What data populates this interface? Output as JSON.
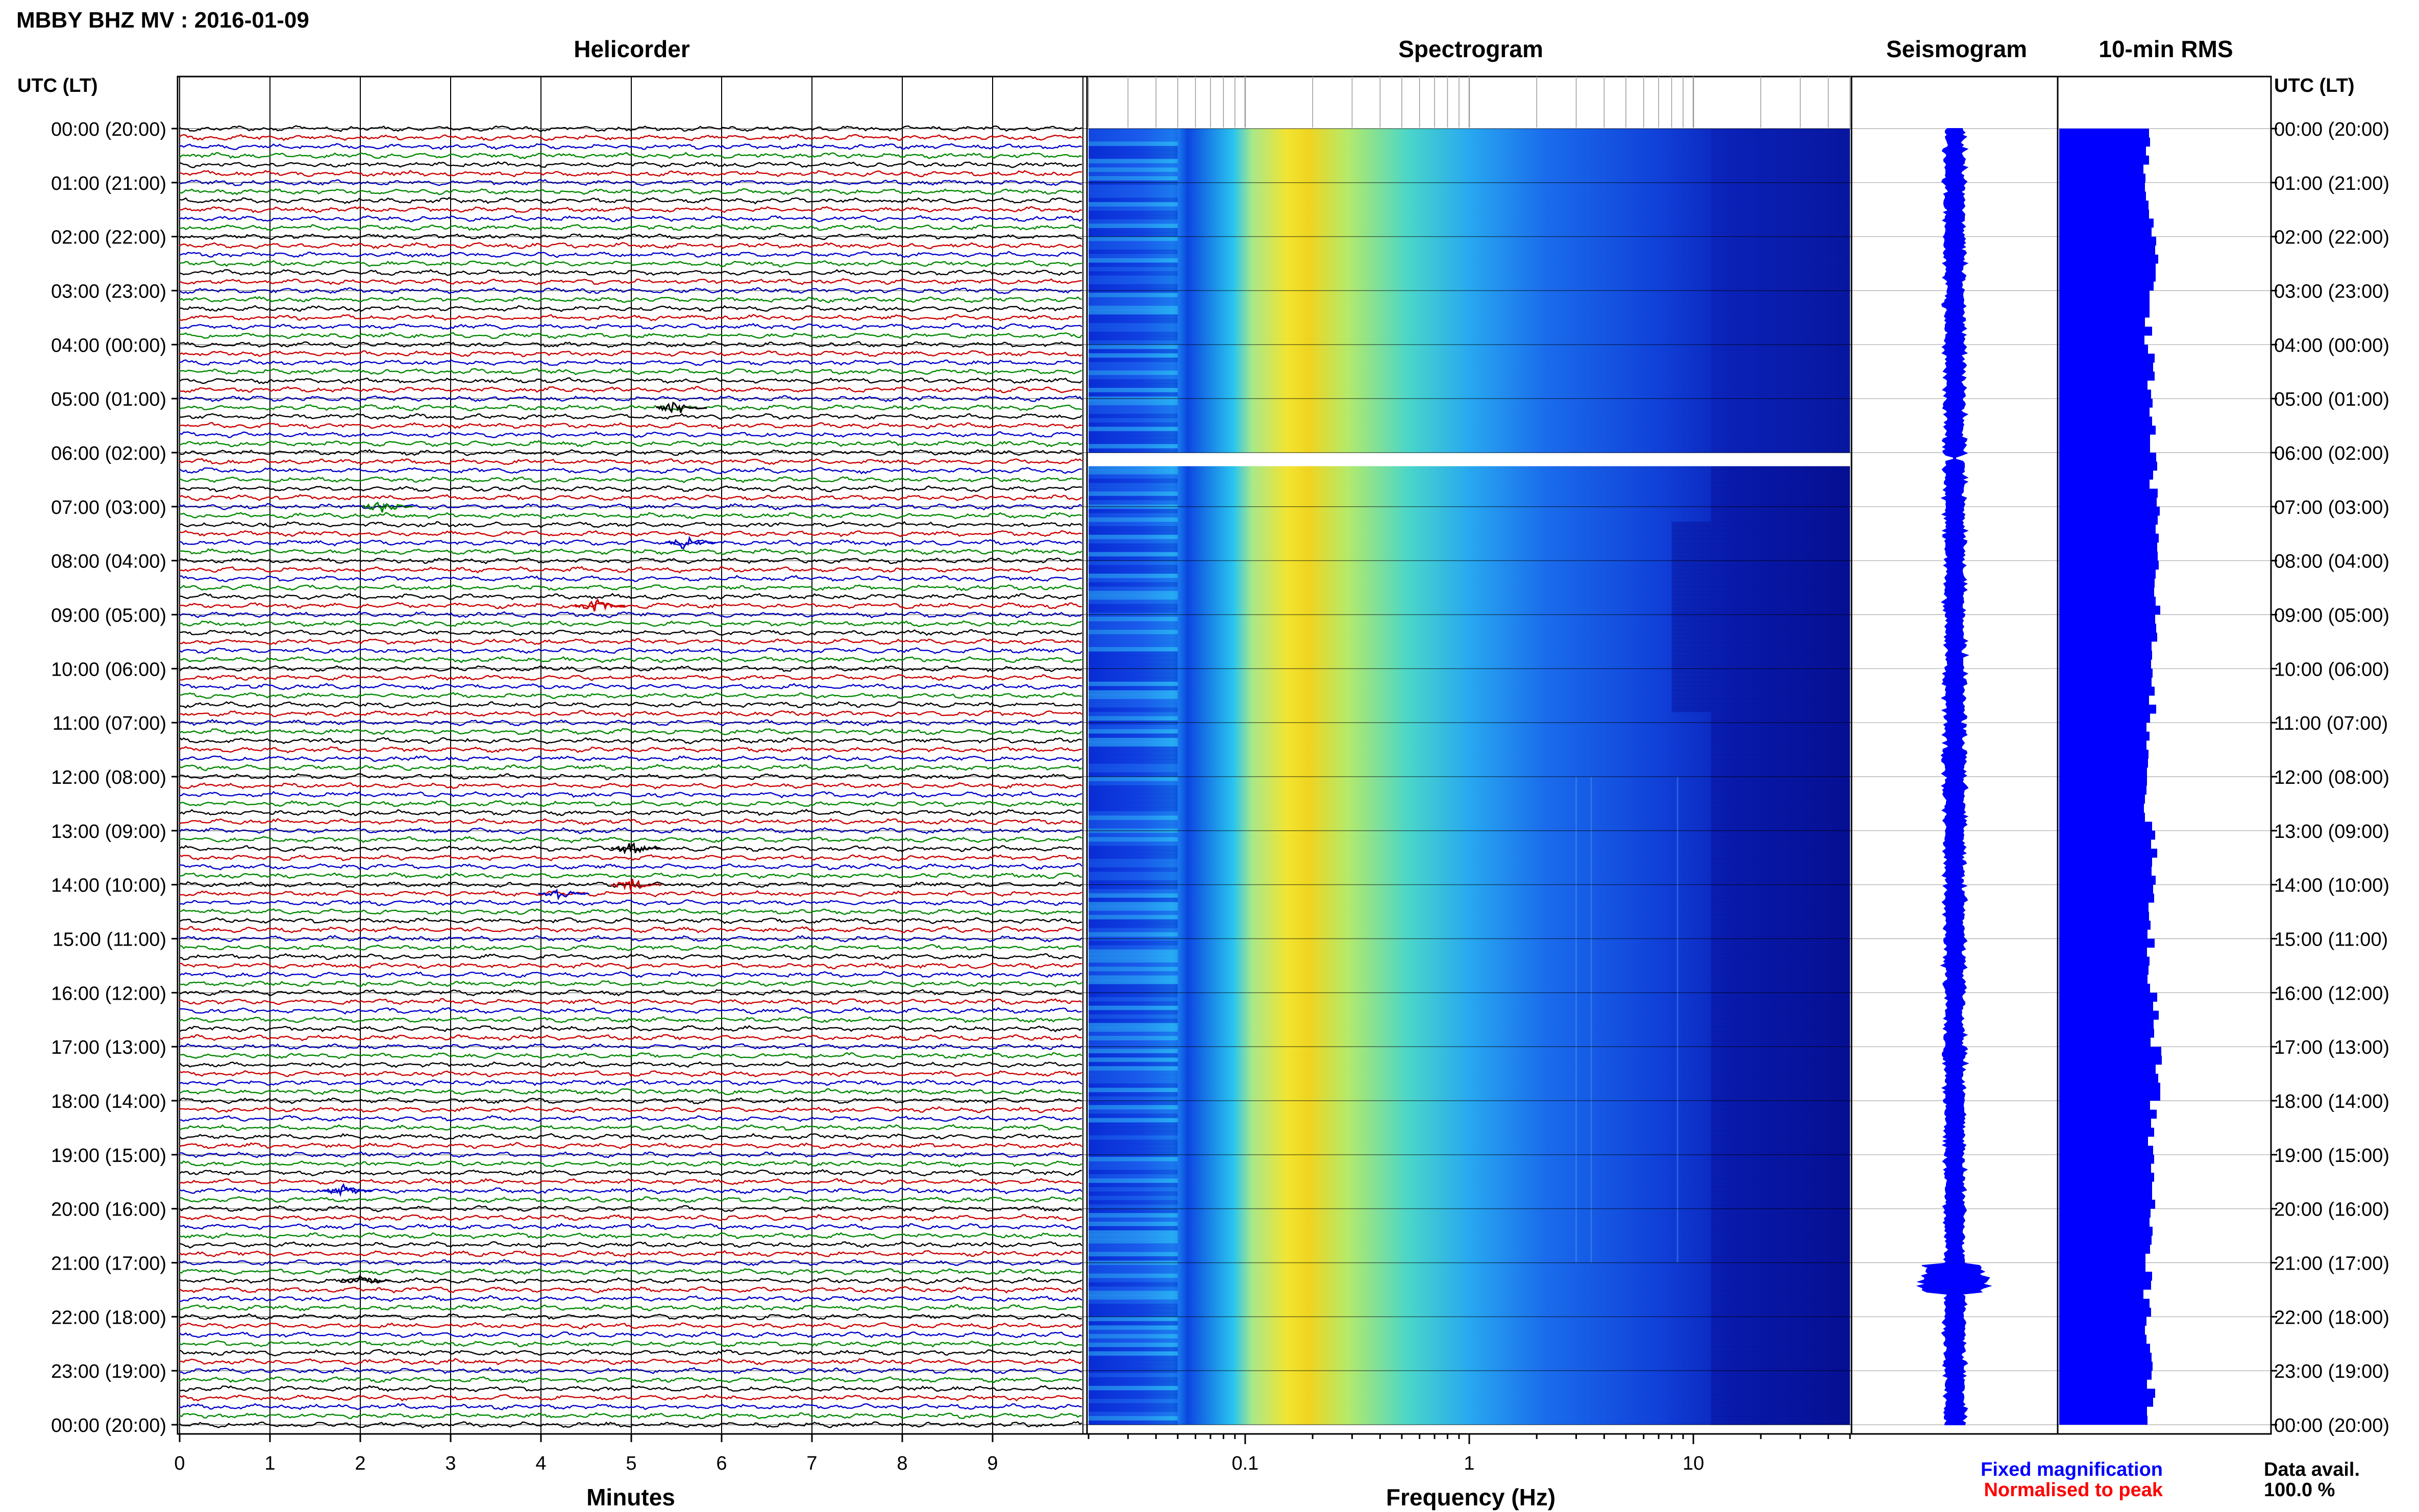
{
  "header": {
    "station_title": "MBBY BHZ MV : 2016-01-09"
  },
  "panels": {
    "helicorder": "Helicorder",
    "spectrogram": "Spectrogram",
    "seismogram": "Seismogram",
    "rms": "10-min RMS"
  },
  "time_axis": {
    "title_left": "UTC (LT)",
    "title_right": "UTC (LT)",
    "labels": [
      "00:00 (20:00)",
      "01:00 (21:00)",
      "02:00 (22:00)",
      "03:00 (23:00)",
      "04:00 (00:00)",
      "05:00 (01:00)",
      "06:00 (02:00)",
      "07:00 (03:00)",
      "08:00 (04:00)",
      "09:00 (05:00)",
      "10:00 (06:00)",
      "11:00 (07:00)",
      "12:00 (08:00)",
      "13:00 (09:00)",
      "14:00 (10:00)",
      "15:00 (11:00)",
      "16:00 (12:00)",
      "17:00 (13:00)",
      "18:00 (14:00)",
      "19:00 (15:00)",
      "20:00 (16:00)",
      "21:00 (17:00)",
      "22:00 (18:00)",
      "23:00 (19:00)",
      "00:00 (20:00)"
    ]
  },
  "footer": {
    "fixed_magnification": "Fixed magnification",
    "normalised_to_peak": "Normalised to peak",
    "data_avail_label": "Data avail.",
    "data_avail_value": "100.0 %"
  },
  "colors": {
    "trace_cycle": [
      "#000000",
      "#cc0000",
      "#0000cc",
      "#008800"
    ],
    "rms_bar": "#0000ff",
    "seismogram": "#0000ff",
    "fixed_magnification": "#0000ff",
    "normalised_to_peak": "#ff0000"
  },
  "chart_data": [
    {
      "type": "line",
      "panel": "helicorder",
      "xlabel": "Minutes",
      "xlim": [
        0,
        10
      ],
      "x_ticks": [
        "0",
        "1",
        "2",
        "3",
        "4",
        "5",
        "6",
        "7",
        "8",
        "9"
      ],
      "rows_per_hour": 6,
      "hours": 24,
      "events": [
        {
          "hour": 5.17,
          "minute": 5.5,
          "color": "#000000"
        },
        {
          "hour": 7.0,
          "minute": 2.25,
          "color": "#008800"
        },
        {
          "hour": 7.67,
          "minute": 5.6,
          "color": "#0000cc"
        },
        {
          "hour": 8.83,
          "minute": 4.6,
          "color": "#cc0000"
        },
        {
          "hour": 13.33,
          "minute": 5.0,
          "color": "#000000"
        },
        {
          "hour": 14.17,
          "minute": 4.2,
          "color": "#0000cc"
        },
        {
          "hour": 14.0,
          "minute": 5.0,
          "color": "#cc0000"
        },
        {
          "hour": 19.67,
          "minute": 1.8,
          "color": "#0000cc"
        },
        {
          "hour": 21.33,
          "minute": 2.0,
          "color": "#000000"
        }
      ]
    },
    {
      "type": "heatmap",
      "panel": "spectrogram",
      "xlabel": "Frequency (Hz)",
      "x_scale": "log",
      "xlim": [
        0.02,
        50
      ],
      "x_ticks": [
        {
          "value": 0.1,
          "label": "0.1"
        },
        {
          "value": 1,
          "label": "1"
        },
        {
          "value": 10,
          "label": "10"
        }
      ],
      "peak_frequency_hz": 0.25,
      "data_gap_hour": 6.1
    },
    {
      "type": "line",
      "panel": "seismogram",
      "hours": 24
    },
    {
      "type": "bar",
      "panel": "rms",
      "interval_minutes": 10,
      "hours": 24,
      "values": [
        0.78,
        0.8,
        0.85,
        0.79,
        0.82,
        0.83,
        0.84,
        0.88,
        0.86,
        0.85,
        0.83,
        0.8,
        0.79,
        0.84,
        0.81,
        0.82,
        0.85,
        0.89,
        0.83,
        0.82,
        0.8,
        0.79,
        0.8,
        0.82
      ]
    }
  ]
}
